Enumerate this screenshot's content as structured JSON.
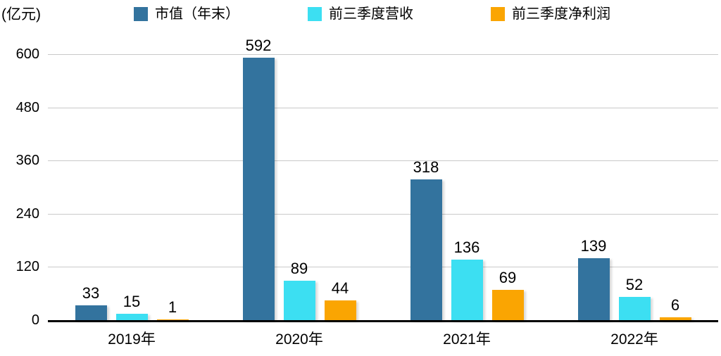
{
  "chart_data": {
    "type": "bar",
    "title": "",
    "unit": "(亿元)",
    "categories": [
      "2019年",
      "2020年",
      "2021年",
      "2022年"
    ],
    "series": [
      {
        "name": "市值（年末）",
        "color": "#33739E",
        "values": [
          33,
          592,
          318,
          139
        ]
      },
      {
        "name": "前三季度营收",
        "color": "#3CDFF2",
        "values": [
          15,
          89,
          136,
          52
        ]
      },
      {
        "name": "前三季度净利润",
        "color": "#FAA502",
        "values": [
          1,
          44,
          69,
          6
        ]
      }
    ],
    "ylim": [
      0,
      600
    ],
    "yticks": [
      0,
      120,
      240,
      360,
      480,
      600
    ],
    "grid": true,
    "legend_position": "top",
    "axis_color": "#000000",
    "gridline_color": "#c9c9c9"
  }
}
